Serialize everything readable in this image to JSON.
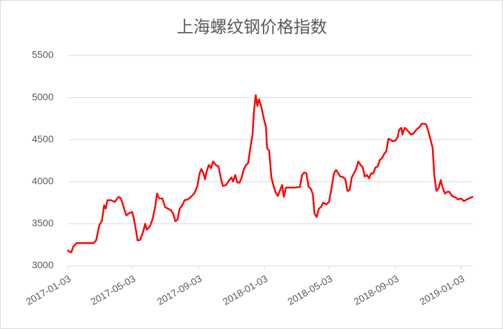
{
  "chart_data": {
    "type": "line",
    "title": "上海螺纹钢价格指数",
    "x": [
      "2017-01-03",
      "2017-01-06",
      "2017-01-10",
      "2017-01-14",
      "2017-01-20",
      "2017-01-30",
      "2017-02-10",
      "2017-02-20",
      "2017-02-25",
      "2017-03-03",
      "2017-03-08",
      "2017-03-12",
      "2017-03-15",
      "2017-03-18",
      "2017-03-25",
      "2017-04-01",
      "2017-04-05",
      "2017-04-08",
      "2017-04-12",
      "2017-04-18",
      "2017-04-22",
      "2017-04-28",
      "2017-05-03",
      "2017-05-06",
      "2017-05-10",
      "2017-05-13",
      "2017-05-18",
      "2017-05-24",
      "2017-05-27",
      "2017-05-30",
      "2017-06-05",
      "2017-06-10",
      "2017-06-15",
      "2017-06-18",
      "2017-06-22",
      "2017-06-28",
      "2017-07-03",
      "2017-07-08",
      "2017-07-14",
      "2017-07-18",
      "2017-07-22",
      "2017-07-26",
      "2017-07-30",
      "2017-08-04",
      "2017-08-08",
      "2017-08-14",
      "2017-08-20",
      "2017-08-26",
      "2017-09-01",
      "2017-09-05",
      "2017-09-08",
      "2017-09-12",
      "2017-09-15",
      "2017-09-18",
      "2017-09-22",
      "2017-09-26",
      "2017-09-30",
      "2017-10-05",
      "2017-10-10",
      "2017-10-14",
      "2017-10-18",
      "2017-10-24",
      "2017-10-30",
      "2017-11-03",
      "2017-11-06",
      "2017-11-10",
      "2017-11-14",
      "2017-11-18",
      "2017-11-22",
      "2017-11-26",
      "2017-11-30",
      "2017-12-04",
      "2017-12-08",
      "2017-12-12",
      "2017-12-15",
      "2017-12-18",
      "2017-12-21",
      "2017-12-24",
      "2017-12-28",
      "2018-01-02",
      "2018-01-06",
      "2018-01-08",
      "2018-01-12",
      "2018-01-16",
      "2018-01-20",
      "2018-01-24",
      "2018-01-28",
      "2018-02-01",
      "2018-02-05",
      "2018-02-08",
      "2018-02-12",
      "2018-02-20",
      "2018-03-01",
      "2018-03-10",
      "2018-03-14",
      "2018-03-18",
      "2018-03-22",
      "2018-03-26",
      "2018-03-30",
      "2018-04-03",
      "2018-04-06",
      "2018-04-10",
      "2018-04-14",
      "2018-04-18",
      "2018-04-22",
      "2018-04-28",
      "2018-05-03",
      "2018-05-08",
      "2018-05-12",
      "2018-05-16",
      "2018-05-20",
      "2018-05-24",
      "2018-05-28",
      "2018-06-02",
      "2018-06-06",
      "2018-06-10",
      "2018-06-14",
      "2018-06-18",
      "2018-06-22",
      "2018-06-26",
      "2018-06-30",
      "2018-07-04",
      "2018-07-08",
      "2018-07-12",
      "2018-07-16",
      "2018-07-20",
      "2018-07-24",
      "2018-07-28",
      "2018-08-01",
      "2018-08-05",
      "2018-08-09",
      "2018-08-13",
      "2018-08-17",
      "2018-08-21",
      "2018-08-25",
      "2018-08-29",
      "2018-09-03",
      "2018-09-07",
      "2018-09-10",
      "2018-09-14",
      "2018-09-16",
      "2018-09-20",
      "2018-09-24",
      "2018-09-28",
      "2018-10-02",
      "2018-10-06",
      "2018-10-12",
      "2018-10-18",
      "2018-10-22",
      "2018-10-26",
      "2018-10-30",
      "2018-11-03",
      "2018-11-07",
      "2018-11-11",
      "2018-11-14",
      "2018-11-18",
      "2018-11-22",
      "2018-11-26",
      "2018-11-30",
      "2018-12-04",
      "2018-12-08",
      "2018-12-12",
      "2018-12-16",
      "2018-12-20",
      "2018-12-24",
      "2018-12-28",
      "2019-01-03",
      "2019-01-08",
      "2019-01-14",
      "2019-01-20",
      "2019-01-25"
    ],
    "values": [
      3190,
      3170,
      3160,
      3230,
      3270,
      3270,
      3270,
      3270,
      3300,
      3480,
      3540,
      3720,
      3680,
      3780,
      3780,
      3760,
      3800,
      3820,
      3800,
      3680,
      3600,
      3630,
      3640,
      3560,
      3420,
      3300,
      3310,
      3420,
      3500,
      3430,
      3470,
      3560,
      3720,
      3860,
      3800,
      3800,
      3700,
      3680,
      3660,
      3620,
      3530,
      3550,
      3680,
      3720,
      3780,
      3790,
      3820,
      3860,
      3950,
      4100,
      4150,
      4100,
      4030,
      4120,
      4200,
      4160,
      4240,
      4200,
      4180,
      4050,
      3950,
      3960,
      4020,
      4050,
      4000,
      4080,
      3990,
      3990,
      4050,
      4150,
      4200,
      4220,
      4400,
      4550,
      4850,
      5030,
      4900,
      4980,
      4900,
      4750,
      4650,
      4400,
      4370,
      4050,
      3950,
      3870,
      3830,
      3900,
      3960,
      3820,
      3930,
      3930,
      3930,
      3940,
      4080,
      4110,
      4100,
      3940,
      3920,
      3850,
      3620,
      3580,
      3680,
      3700,
      3750,
      3730,
      3760,
      3940,
      4100,
      4140,
      4100,
      4060,
      4060,
      4030,
      3890,
      3900,
      4050,
      4100,
      4150,
      4240,
      4200,
      4180,
      4060,
      4080,
      4040,
      4100,
      4100,
      4170,
      4180,
      4260,
      4280,
      4330,
      4360,
      4510,
      4500,
      4480,
      4490,
      4530,
      4620,
      4640,
      4560,
      4640,
      4620,
      4590,
      4560,
      4570,
      4620,
      4650,
      4690,
      4690,
      4680,
      4600,
      4500,
      4400,
      4080,
      3890,
      3920,
      4020,
      3920,
      3860,
      3880,
      3880,
      3840,
      3820,
      3810,
      3790,
      3800,
      3770,
      3790,
      3810,
      3820
    ],
    "color": "#ff0000",
    "xlim": [
      "2017-01-03",
      "2019-01-25"
    ],
    "xticks": [
      "2017-01-03",
      "2017-05-03",
      "2017-09-03",
      "2018-01-03",
      "2018-05-03",
      "2018-09-03",
      "2019-01-03"
    ],
    "ylim": [
      3000,
      5500
    ],
    "yticks": [
      3000,
      3500,
      4000,
      4500,
      5000,
      5500
    ],
    "grid": true
  }
}
